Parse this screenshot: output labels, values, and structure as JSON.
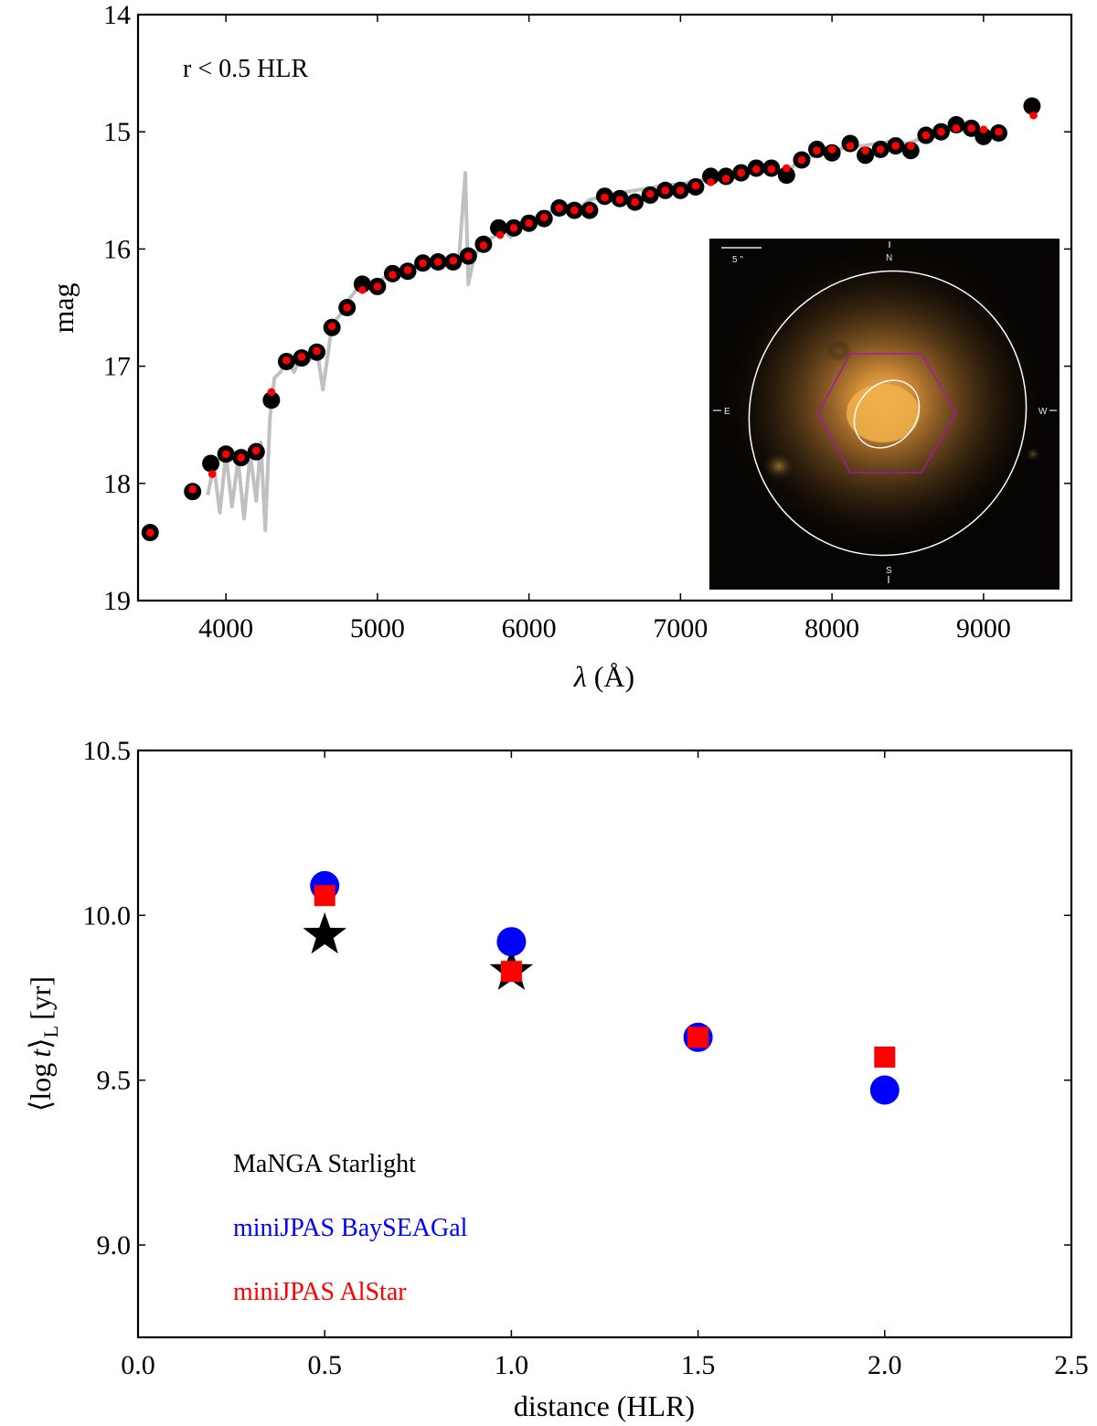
{
  "chart_data": [
    {
      "type": "scatter",
      "title": "",
      "annotation": "r < 0.5 HLR",
      "xlabel_symbol": "λ",
      "xlabel_unit": "(Å)",
      "ylabel": "mag",
      "xlim": [
        3420,
        9580
      ],
      "ylim": [
        19,
        14
      ],
      "y_inverted": true,
      "xticks": [
        4000,
        5000,
        6000,
        7000,
        8000,
        9000
      ],
      "yticks": [
        14,
        15,
        16,
        17,
        18,
        19
      ],
      "spectrum": {
        "name": "spectrum",
        "color": "#c0c0c0",
        "x": [
          3880,
          3920,
          3960,
          4000,
          4040,
          4080,
          4120,
          4160,
          4200,
          4230,
          4260,
          4290,
          4320,
          4360,
          4400,
          4450,
          4500,
          4550,
          4600,
          4640,
          4700,
          4760,
          4800,
          4860,
          4920,
          5000,
          5080,
          5160,
          5240,
          5320,
          5400,
          5480,
          5540,
          5580,
          5600,
          5640,
          5700,
          5760,
          5840,
          5880,
          5920,
          6000,
          6100,
          6200,
          6280,
          6320,
          6360,
          6400,
          6500,
          6600,
          6700,
          6800,
          6900,
          7000,
          7100,
          7200,
          7300,
          7400,
          7500,
          7600,
          7700,
          7800,
          7900,
          8000,
          8100,
          8200,
          8300,
          8400,
          8500,
          8600,
          8700,
          8800,
          8900,
          9000,
          9100
        ],
        "y": [
          18.1,
          17.85,
          18.25,
          17.75,
          18.2,
          17.8,
          18.3,
          17.75,
          18.15,
          17.65,
          18.4,
          17.45,
          17.1,
          17.05,
          16.95,
          17.05,
          16.9,
          16.95,
          16.85,
          17.2,
          16.65,
          16.55,
          16.45,
          16.35,
          16.3,
          16.28,
          16.22,
          16.18,
          16.15,
          16.12,
          16.1,
          16.1,
          16.05,
          15.35,
          16.3,
          16.05,
          15.95,
          15.9,
          15.85,
          15.9,
          15.8,
          15.75,
          15.7,
          15.65,
          15.62,
          15.68,
          15.62,
          15.58,
          15.55,
          15.52,
          15.5,
          15.48,
          15.45,
          15.45,
          15.42,
          15.4,
          15.38,
          15.35,
          15.33,
          15.3,
          15.35,
          15.22,
          15.2,
          15.18,
          15.12,
          15.12,
          15.1,
          15.08,
          15.1,
          15.05,
          15.0,
          14.95,
          15.0,
          15.02,
          15.0
        ]
      },
      "series": [
        {
          "name": "observed",
          "color": "#000000",
          "x": [
            3500,
            3780,
            3900,
            4000,
            4100,
            4200,
            4300,
            4400,
            4500,
            4600,
            4700,
            4800,
            4900,
            5000,
            5100,
            5200,
            5300,
            5400,
            5500,
            5600,
            5700,
            5800,
            5900,
            6000,
            6100,
            6200,
            6300,
            6400,
            6500,
            6600,
            6700,
            6800,
            6900,
            7000,
            7100,
            7200,
            7300,
            7400,
            7500,
            7600,
            7700,
            7800,
            7900,
            8000,
            8120,
            8220,
            8320,
            8420,
            8520,
            8620,
            8720,
            8820,
            8920,
            9000,
            9100,
            9320
          ],
          "y": [
            18.42,
            18.07,
            17.83,
            17.75,
            17.78,
            17.73,
            17.29,
            16.96,
            16.93,
            16.88,
            16.67,
            16.5,
            16.3,
            16.32,
            16.21,
            16.19,
            16.12,
            16.11,
            16.11,
            16.06,
            15.96,
            15.82,
            15.82,
            15.78,
            15.74,
            15.65,
            15.67,
            15.67,
            15.55,
            15.57,
            15.6,
            15.54,
            15.5,
            15.5,
            15.47,
            15.38,
            15.38,
            15.35,
            15.31,
            15.31,
            15.37,
            15.24,
            15.15,
            15.18,
            15.1,
            15.2,
            15.15,
            15.12,
            15.16,
            15.03,
            15.0,
            14.94,
            14.97,
            15.04,
            15.01,
            14.78
          ]
        },
        {
          "name": "model",
          "color": "#ff0000",
          "x": [
            3500,
            3780,
            3910,
            4000,
            4100,
            4200,
            4300,
            4400,
            4500,
            4600,
            4700,
            4800,
            4900,
            5000,
            5100,
            5200,
            5300,
            5400,
            5500,
            5600,
            5700,
            5810,
            5900,
            6000,
            6100,
            6200,
            6300,
            6400,
            6500,
            6600,
            6700,
            6800,
            6900,
            7000,
            7100,
            7200,
            7300,
            7400,
            7500,
            7600,
            7700,
            7800,
            7900,
            8000,
            8120,
            8220,
            8320,
            8420,
            8520,
            8620,
            8720,
            8820,
            8920,
            9000,
            9100,
            9330
          ],
          "y": [
            18.42,
            18.05,
            17.92,
            17.75,
            17.78,
            17.72,
            17.22,
            16.95,
            16.92,
            16.87,
            16.66,
            16.5,
            16.35,
            16.32,
            16.22,
            16.18,
            16.12,
            16.11,
            16.1,
            16.06,
            15.97,
            15.88,
            15.82,
            15.78,
            15.73,
            15.65,
            15.67,
            15.66,
            15.56,
            15.58,
            15.6,
            15.53,
            15.5,
            15.5,
            15.46,
            15.43,
            15.4,
            15.35,
            15.32,
            15.32,
            15.31,
            15.24,
            15.16,
            15.15,
            15.12,
            15.16,
            15.15,
            15.12,
            15.12,
            15.03,
            15.0,
            14.97,
            14.97,
            14.98,
            15.0,
            14.86
          ]
        }
      ],
      "inset": {
        "scale_label": "5 \"",
        "compass": [
          "N",
          "S",
          "E",
          "W"
        ],
        "colors": {
          "background": "#070503",
          "galaxy_core": "#f2b24a",
          "ellipse": "#ffffff",
          "hexagon": "#a31a9e"
        }
      }
    },
    {
      "type": "scatter",
      "title": "",
      "xlabel": "distance (HLR)",
      "ylabel_main": "⟨log",
      "ylabel_var": "t",
      "ylabel_close": "⟩",
      "ylabel_sub": "L",
      "ylabel_unit": "[yr]",
      "xlim": [
        0.0,
        2.5
      ],
      "ylim": [
        8.72,
        10.5
      ],
      "xticks": [
        0.0,
        0.5,
        1.0,
        1.5,
        2.0,
        2.5
      ],
      "xtick_labels": [
        "0.0",
        "0.5",
        "1.0",
        "1.5",
        "2.0",
        "2.5"
      ],
      "yticks": [
        9.0,
        9.5,
        10.0,
        10.5
      ],
      "ytick_labels": [
        "9.0",
        "9.5",
        "10.0",
        "10.5"
      ],
      "series": [
        {
          "name": "MaNGA Starlight",
          "color": "#000000",
          "marker": "star",
          "x": [
            0.5,
            1.0
          ],
          "y": [
            9.94,
            9.83
          ]
        },
        {
          "name": "miniJPAS BaySEAGal",
          "color": "#0000ff",
          "marker": "circle",
          "x": [
            0.5,
            1.0,
            1.5,
            2.0
          ],
          "y": [
            10.09,
            9.92,
            9.63,
            9.47
          ]
        },
        {
          "name": "miniJPAS AlStar",
          "color": "#ff0000",
          "marker": "square",
          "x": [
            0.5,
            1.0,
            1.5,
            2.0
          ],
          "y": [
            10.06,
            9.83,
            9.63,
            9.57
          ]
        }
      ],
      "legend_position": "lower-left"
    }
  ]
}
